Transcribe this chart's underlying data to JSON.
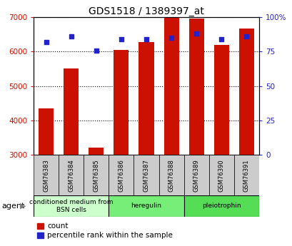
{
  "title": "GDS1518 / 1389397_at",
  "samples": [
    "GSM76383",
    "GSM76384",
    "GSM76385",
    "GSM76386",
    "GSM76387",
    "GSM76388",
    "GSM76389",
    "GSM76390",
    "GSM76391"
  ],
  "counts": [
    4350,
    5520,
    3220,
    6050,
    6280,
    6980,
    6960,
    6200,
    6680
  ],
  "percentiles": [
    82,
    86,
    76,
    84,
    84,
    85,
    88,
    84,
    86
  ],
  "ymin": 3000,
  "ymax": 7000,
  "yticks": [
    3000,
    4000,
    5000,
    6000,
    7000
  ],
  "y2ticks": [
    0,
    25,
    50,
    75,
    100
  ],
  "bar_color": "#cc1100",
  "scatter_color": "#2222cc",
  "groups": [
    {
      "label": "conditioned medium from\nBSN cells",
      "indices": [
        0,
        1,
        2
      ],
      "color": "#ccffcc"
    },
    {
      "label": "heregulin",
      "indices": [
        3,
        4,
        5
      ],
      "color": "#77ee77"
    },
    {
      "label": "pleiotrophin",
      "indices": [
        6,
        7,
        8
      ],
      "color": "#55dd55"
    }
  ],
  "agent_label": "agent",
  "legend_count": "count",
  "legend_percentile": "percentile rank within the sample",
  "axis_color_left": "#cc1100",
  "axis_color_right": "#2222cc",
  "sample_box_color": "#cccccc",
  "bg_color": "#ffffff"
}
